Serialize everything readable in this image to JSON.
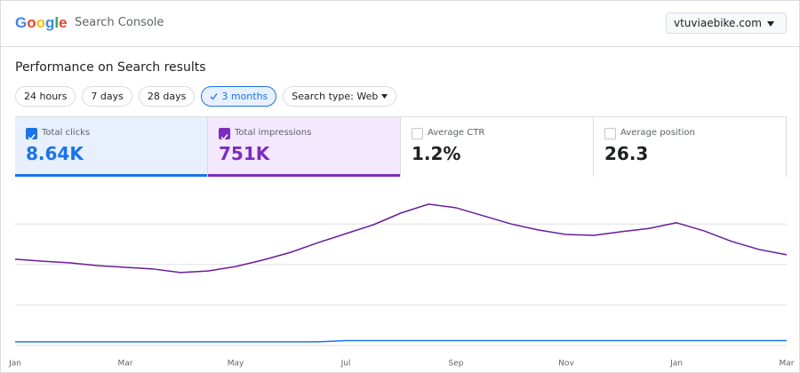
{
  "header": {
    "logo": "Google",
    "product": "Search Console",
    "property": "vtuviaebike.com"
  },
  "title": "Performance on Search results",
  "filters": [
    {
      "label": "24 hours",
      "selected": false,
      "dropdown": false
    },
    {
      "label": "7 days",
      "selected": false,
      "dropdown": false
    },
    {
      "label": "28 days",
      "selected": false,
      "dropdown": false
    },
    {
      "label": "3 months",
      "selected": true,
      "dropdown": false
    },
    {
      "label": "Search type: Web",
      "selected": false,
      "dropdown": true
    }
  ],
  "metrics": [
    {
      "label": "Total clicks",
      "value": "8.64K",
      "checked": true,
      "color": "#1a73e8",
      "background": "#e8f0fe"
    },
    {
      "label": "Total impressions",
      "value": "751K",
      "checked": true,
      "color": "#7b2cbf",
      "background": "#f3e8fd"
    },
    {
      "label": "Average CTR",
      "value": "1.2%",
      "checked": false,
      "color": "#202124",
      "background": "#ffffff"
    },
    {
      "label": "Average position",
      "value": "26.3",
      "checked": false,
      "color": "#202124",
      "background": "#ffffff"
    }
  ],
  "chart_data": {
    "type": "line",
    "categories": [
      "Jan",
      null,
      null,
      null,
      "Mar",
      null,
      null,
      null,
      "May",
      null,
      null,
      null,
      "Jul",
      null,
      null,
      null,
      "Sep",
      null,
      null,
      null,
      "Nov",
      null,
      null,
      null,
      "Jan",
      null,
      null,
      null,
      "Mar"
    ],
    "series": [
      {
        "name": "Total clicks",
        "color": "#1a73e8",
        "values": [
          0.09,
          0.09,
          0.09,
          0.09,
          0.09,
          0.09,
          0.09,
          0.09,
          0.09,
          0.09,
          0.09,
          0.09,
          0.12,
          0.12,
          0.12,
          0.12,
          0.12,
          0.12,
          0.12,
          0.12,
          0.12,
          0.12,
          0.12,
          0.12,
          0.12,
          0.12,
          0.12,
          0.12,
          0.12
        ]
      },
      {
        "name": "Total impressions",
        "color": "#6a1b9a",
        "values": [
          2.13,
          2.08,
          2.04,
          1.97,
          1.93,
          1.89,
          1.8,
          1.84,
          1.95,
          2.11,
          2.3,
          2.54,
          2.76,
          2.98,
          3.27,
          3.49,
          3.4,
          3.2,
          3.0,
          2.85,
          2.74,
          2.72,
          2.81,
          2.89,
          3.03,
          2.83,
          2.57,
          2.37,
          2.24
        ]
      }
    ],
    "ylim": [
      0,
      4
    ],
    "yticks": [
      0,
      1,
      2,
      3
    ],
    "grid": true
  }
}
